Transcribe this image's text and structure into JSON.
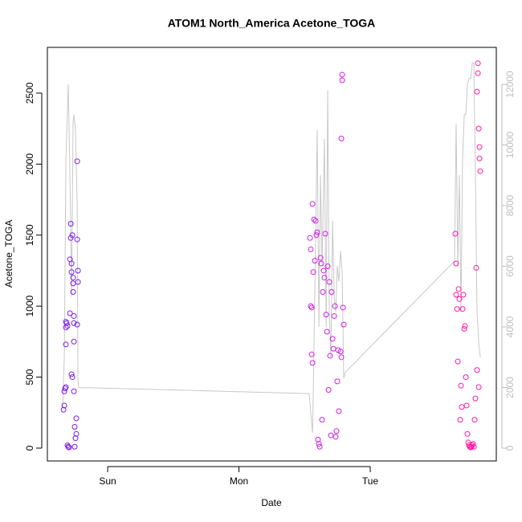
{
  "chart_data": {
    "type": "scatter",
    "title": "ATOM1 North_America Acetone_TOGA",
    "x_label": "Date",
    "y_label": "Acetone_TOGA",
    "xlim": [
      -0.459,
      2.96
    ],
    "xticks": [
      {
        "value": 0,
        "label": "Sun"
      },
      {
        "value": 1,
        "label": "Mon"
      },
      {
        "value": 2,
        "label": "Tue"
      }
    ],
    "ylim": [
      -90.5,
      2822
    ],
    "yticks": [
      0,
      500,
      1000,
      1500,
      2000,
      2500
    ],
    "y2lim": [
      -424,
      13219
    ],
    "y2ticks": [
      0,
      2000,
      4000,
      6000,
      8000,
      10000,
      12000
    ],
    "series": [
      {
        "color": "#7b1fe8",
        "marker": "circle",
        "x": [
          -0.336,
          -0.33,
          -0.33,
          -0.324,
          -0.318,
          -0.318,
          -0.318,
          -0.312,
          -0.318,
          -0.306,
          -0.3,
          -0.294,
          -0.287,
          -0.287,
          -0.281,
          -0.281,
          -0.275,
          -0.275,
          -0.275,
          -0.269,
          -0.269,
          -0.263,
          -0.263,
          -0.263,
          -0.257,
          -0.257,
          -0.257,
          -0.257,
          -0.251,
          -0.251,
          -0.245,
          -0.239,
          -0.239,
          -0.232,
          -0.232,
          -0.226,
          -0.226,
          -0.232,
          -0.306
        ],
        "values": [
          270,
          300,
          400,
          420,
          430,
          850,
          890,
          880,
          730,
          20,
          10,
          5,
          950,
          1330,
          1480,
          1580,
          1300,
          1240,
          520,
          500,
          1500,
          1200,
          1100,
          1160,
          930,
          880,
          750,
          400,
          10,
          150,
          70,
          100,
          210,
          2020,
          1470,
          1250,
          1170,
          870,
          860
        ]
      },
      {
        "color": "#d21ee6",
        "marker": "circle",
        "x": [
          1.541,
          1.547,
          1.547,
          1.554,
          1.554,
          1.56,
          1.56,
          1.566,
          1.572,
          1.578,
          1.584,
          1.59,
          1.596,
          1.602,
          1.609,
          1.615,
          1.621,
          1.627,
          1.633,
          1.639,
          1.645,
          1.651,
          1.657,
          1.664,
          1.67,
          1.676,
          1.682,
          1.688,
          1.694,
          1.7,
          1.706,
          1.713,
          1.719,
          1.725,
          1.731,
          1.737,
          1.743,
          1.749,
          1.755,
          1.761,
          1.774,
          1.78,
          1.786,
          1.786,
          1.78,
          1.792,
          1.798
        ],
        "values": [
          1480,
          1400,
          1000,
          990,
          660,
          1720,
          600,
          1240,
          1610,
          1320,
          1600,
          1500,
          1520,
          60,
          30,
          10,
          1340,
          1300,
          200,
          1100,
          1250,
          1200,
          1510,
          940,
          820,
          1280,
          410,
          1170,
          650,
          90,
          1100,
          770,
          700,
          930,
          1000,
          80,
          120,
          470,
          690,
          260,
          680,
          640,
          2630,
          2590,
          2180,
          990,
          870
        ]
      },
      {
        "color": "#ff1aa8",
        "marker": "circle",
        "x": [
          2.648,
          2.654,
          2.654,
          2.661,
          2.667,
          2.673,
          2.679,
          2.685,
          2.691,
          2.697,
          2.703,
          2.709,
          2.716,
          2.722,
          2.728,
          2.734,
          2.74,
          2.746,
          2.752,
          2.758,
          2.765,
          2.771,
          2.777,
          2.783,
          2.789,
          2.795,
          2.801,
          2.807,
          2.813,
          2.82,
          2.82,
          2.826,
          2.832,
          2.838,
          2.813,
          2.826,
          2.832
        ],
        "values": [
          1510,
          1300,
          1080,
          980,
          610,
          1120,
          1050,
          200,
          440,
          290,
          980,
          1080,
          840,
          860,
          500,
          300,
          100,
          40,
          20,
          10,
          5,
          10,
          20,
          30,
          10,
          200,
          350,
          1270,
          2510,
          2710,
          2640,
          2250,
          2120,
          1950,
          550,
          430,
          2040
        ]
      },
      {
        "color": "#c8c8c8",
        "marker": "line",
        "axis": "y2",
        "x": [
          -0.343,
          -0.33,
          -0.318,
          -0.3,
          -0.287,
          -0.275,
          -0.263,
          -0.257,
          -0.245,
          -0.232,
          -0.226,
          -0.22,
          1.535,
          1.56,
          1.566,
          1.584,
          1.596,
          1.609,
          1.621,
          1.633,
          1.651,
          1.664,
          1.676,
          1.688,
          1.7,
          1.713,
          1.725,
          1.737,
          1.749,
          1.761,
          1.774,
          1.786,
          1.798,
          1.81,
          2.642,
          2.654,
          2.667,
          2.679,
          2.691,
          2.703,
          2.716,
          2.728,
          2.74,
          2.752,
          2.765,
          2.777,
          2.789,
          2.801,
          2.813,
          2.826,
          2.838
        ],
        "values": [
          1300,
          3000,
          9500,
          12000,
          9000,
          5000,
          10800,
          11000,
          10500,
          8000,
          2200,
          2000,
          1800,
          500,
          1800,
          7000,
          10500,
          4000,
          9000,
          6000,
          10200,
          4000,
          11800,
          4500,
          3000,
          7500,
          5000,
          4500,
          6000,
          5500,
          6500,
          5800,
          2300,
          2500,
          6170,
          10700,
          6000,
          9000,
          4500,
          9500,
          11000,
          11000,
          12000,
          12200,
          12200,
          12700,
          12700,
          9000,
          4500,
          3500,
          3000
        ]
      }
    ]
  }
}
